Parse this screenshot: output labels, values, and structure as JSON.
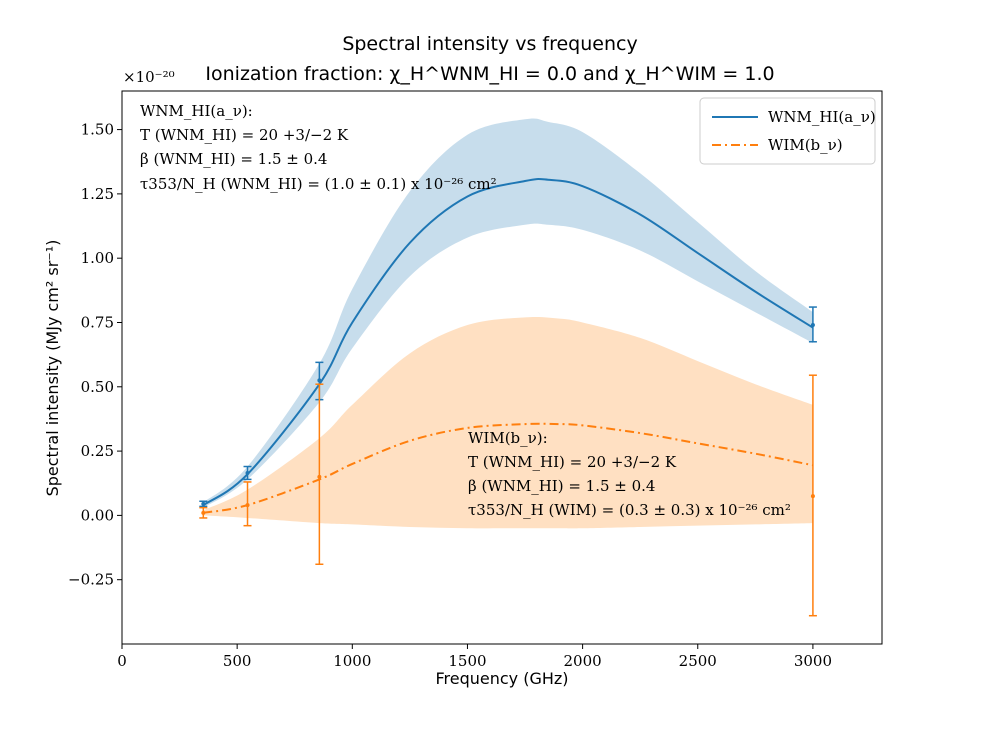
{
  "chart_data": {
    "type": "line",
    "title": "Spectral intensity vs frequency",
    "subtitle": "Ionization fraction: χ_H^WNM_HI = 0.0 and χ_H^WIM = 1.0",
    "xlabel": "Frequency (GHz)",
    "ylabel": "Spectral intensity (MJy cm² sr⁻¹)",
    "y_offset_label": "×10⁻²⁰",
    "xlim": [
      0,
      3300
    ],
    "ylim": [
      -0.5,
      1.65
    ],
    "x_ticks": [
      0,
      500,
      1000,
      1500,
      2000,
      2500,
      3000
    ],
    "y_ticks": [
      -0.25,
      0.0,
      0.25,
      0.5,
      0.75,
      1.0,
      1.25,
      1.5
    ],
    "x_tick_labels": [
      "0",
      "500",
      "1000",
      "1500",
      "2000",
      "2500",
      "3000"
    ],
    "y_tick_labels": [
      "−0.25",
      "0.00",
      "0.25",
      "0.50",
      "0.75",
      "1.00",
      "1.25",
      "1.50"
    ],
    "grid": false,
    "legend_position": "top-right",
    "series": [
      {
        "name": "WNM_HI(a_ν)",
        "color": "#1f77b4",
        "band_color": "#1f77b4",
        "line_style": "solid",
        "curve": {
          "x": [
            353,
            545,
            857,
            1000,
            1250,
            1500,
            1750,
            1850,
            2000,
            2250,
            2500,
            2750,
            3000
          ],
          "y": [
            0.04,
            0.16,
            0.51,
            0.75,
            1.06,
            1.24,
            1.3,
            1.305,
            1.28,
            1.17,
            1.02,
            0.87,
            0.73
          ],
          "upper": [
            0.05,
            0.19,
            0.59,
            0.88,
            1.26,
            1.48,
            1.54,
            1.53,
            1.49,
            1.33,
            1.14,
            0.95,
            0.79
          ],
          "lower": [
            0.03,
            0.14,
            0.44,
            0.65,
            0.93,
            1.08,
            1.13,
            1.13,
            1.11,
            1.03,
            0.91,
            0.79,
            0.67
          ]
        },
        "points": {
          "x": [
            353,
            545,
            857,
            3000
          ],
          "y": [
            0.045,
            0.165,
            0.525,
            0.74
          ],
          "err_low": [
            0.035,
            0.14,
            0.45,
            0.675
          ],
          "err_high": [
            0.055,
            0.19,
            0.595,
            0.81
          ]
        }
      },
      {
        "name": "WIM(b_ν)",
        "color": "#ff7f0e",
        "band_color": "#ffbb78",
        "line_style": "dash-dot",
        "curve": {
          "x": [
            353,
            545,
            857,
            1000,
            1250,
            1500,
            1750,
            1900,
            2000,
            2250,
            2500,
            2750,
            3000
          ],
          "y": [
            0.01,
            0.04,
            0.14,
            0.2,
            0.29,
            0.34,
            0.355,
            0.355,
            0.35,
            0.32,
            0.28,
            0.24,
            0.195
          ],
          "upper": [
            0.02,
            0.1,
            0.3,
            0.43,
            0.63,
            0.74,
            0.77,
            0.765,
            0.75,
            0.69,
            0.6,
            0.51,
            0.43
          ],
          "lower": [
            0.0,
            -0.01,
            -0.03,
            -0.035,
            -0.045,
            -0.05,
            -0.05,
            -0.05,
            -0.05,
            -0.045,
            -0.04,
            -0.035,
            -0.03
          ]
        },
        "points": {
          "x": [
            353,
            545,
            857,
            3000
          ],
          "y": [
            0.01,
            0.04,
            0.15,
            0.075
          ],
          "err_low": [
            -0.01,
            -0.04,
            -0.19,
            -0.39
          ],
          "err_high": [
            0.03,
            0.13,
            0.51,
            0.545
          ]
        }
      }
    ],
    "annotations": [
      {
        "anchor": "upper-left",
        "lines": [
          "WNM_HI(a_ν):",
          "T (WNM_HI) = 20 +3/−2 K",
          "β (WNM_HI) = 1.5 ± 0.4",
          "τ353/N_H (WNM_HI) = (1.0 ± 0.1) x 10⁻²⁶ cm²"
        ]
      },
      {
        "anchor": "center-right",
        "lines": [
          "WIM(b_ν):",
          "T (WNM_HI) = 20 +3/−2 K",
          "β (WNM_HI) = 1.5 ± 0.4",
          "τ353/N_H (WIM) = (0.3 ± 0.3) x 10⁻²⁶ cm²"
        ]
      }
    ]
  }
}
